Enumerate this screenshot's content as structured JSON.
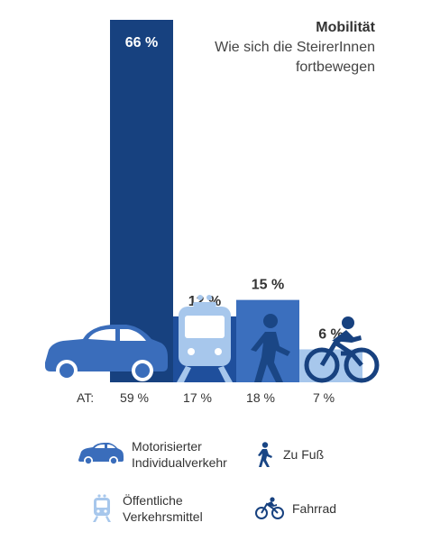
{
  "chart_data": {
    "type": "bar",
    "title": "Mobilität",
    "subtitle": "Wie sich die SteirerInnen fortbewegen",
    "categories": [
      "Motorisierter Individualverkehr",
      "Öffentliche Verkehrsmittel",
      "Zu Fuß",
      "Fahrrad"
    ],
    "values": [
      66,
      12,
      15,
      6
    ],
    "value_labels": [
      "66 %",
      "12 %",
      "15 %",
      "6 %"
    ],
    "unit": "%",
    "comparison_label": "AT:",
    "comparison_values": [
      59,
      17,
      18,
      7
    ],
    "comparison_labels": [
      "59 %",
      "17 %",
      "18 %",
      "7 %"
    ],
    "colors": [
      "#17417f",
      "#1f4f9c",
      "#3b6fbe",
      "#a7c7ec"
    ],
    "legend": "bottom",
    "grid": false
  },
  "legend": {
    "car_line1": "Motorisierter",
    "car_line2": "Individualverkehr",
    "walk": "Zu Fuß",
    "transit_line1": "Öffentliche",
    "transit_line2": "Verkehrsmittel",
    "bike": "Fahrrad"
  },
  "icons": {
    "car": "car-icon",
    "train": "train-icon",
    "walk": "pedestrian-icon",
    "bike": "bicycle-icon"
  }
}
